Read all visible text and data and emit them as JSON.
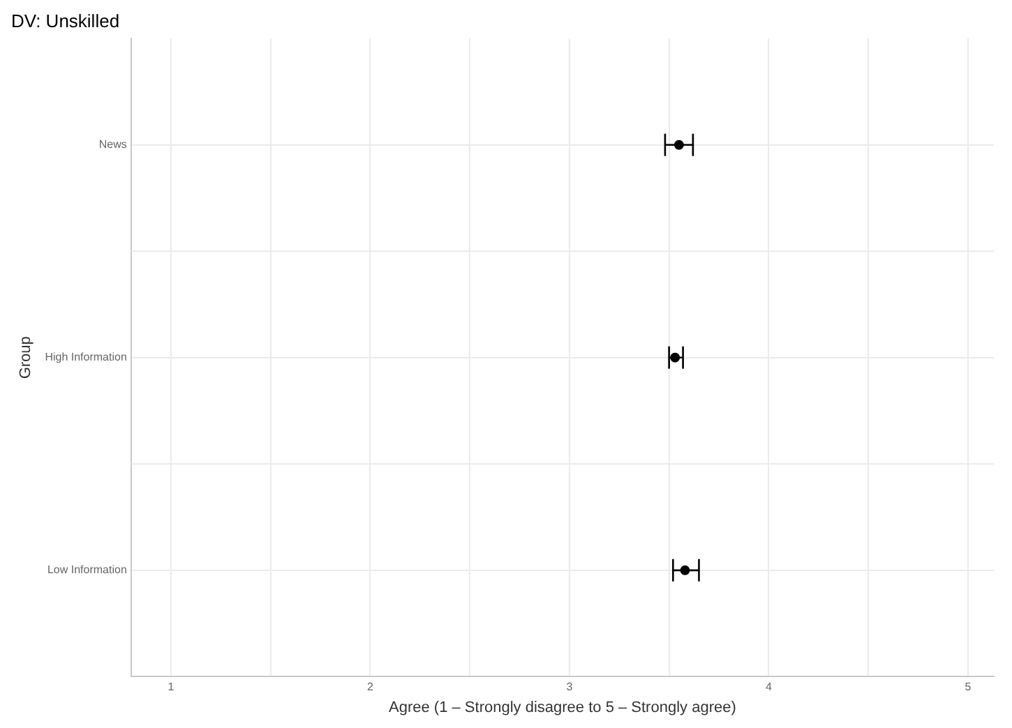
{
  "chart_data": {
    "type": "scatter",
    "title": "DV: Unskilled",
    "xlabel": "Agree (1 – Strongly disagree to 5 – Strongly agree)",
    "ylabel": "Group",
    "orientation": "horizontal",
    "categories": [
      "News",
      "High Information",
      "Low Information"
    ],
    "series": [
      {
        "color": "#000000",
        "values": [
          3.55,
          3.53,
          3.58
        ],
        "errors": [
          [
            3.48,
            3.62
          ],
          [
            3.5,
            3.57
          ],
          [
            3.52,
            3.65
          ]
        ]
      }
    ],
    "xlim": [
      0.8,
      5.13
    ],
    "xticks": [
      1,
      {
        "value": 1.5,
        "label": null
      },
      2,
      {
        "value": 2.5,
        "label": null
      },
      3,
      {
        "value": 3.5,
        "label": null
      },
      4,
      {
        "value": 4.5,
        "label": null
      },
      5
    ],
    "grid": true,
    "legend": false,
    "marker": "circle"
  }
}
